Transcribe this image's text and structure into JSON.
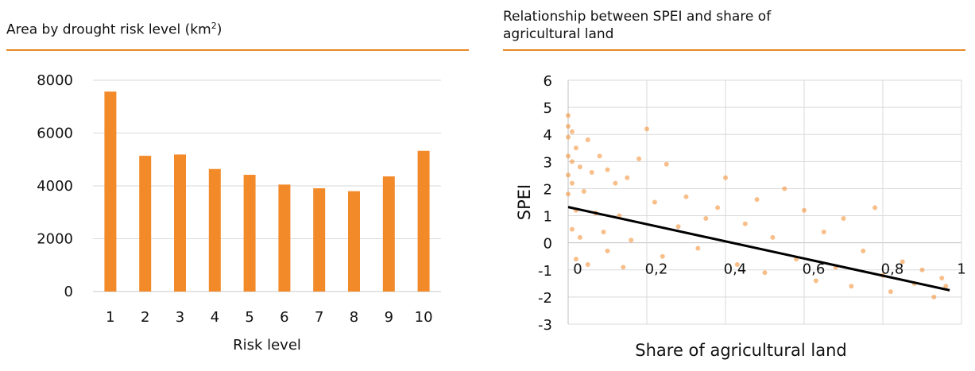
{
  "chart_data": [
    {
      "type": "bar",
      "title": "Area by drought risk level (km",
      "title_sup": "2",
      "title_end": ")",
      "xlabel": "Risk level",
      "ylabel": "",
      "categories": [
        "1",
        "2",
        "3",
        "4",
        "5",
        "6",
        "7",
        "8",
        "9",
        "10"
      ],
      "values": [
        7570,
        5140,
        5190,
        4640,
        4420,
        4050,
        3910,
        3800,
        4360,
        5330
      ],
      "ylim": [
        0,
        8000
      ],
      "yticks": [
        "0",
        "2000",
        "4000",
        "6000",
        "8000"
      ],
      "grid": true,
      "color": "#f28a2a"
    },
    {
      "type": "scatter",
      "title": "Relationship between SPEI and share of agricultural land",
      "title_lines": [
        "Relationship between SPEI and share of",
        "agricultural land"
      ],
      "xlabel": "Share of agricultural land",
      "ylabel": "SPEI",
      "xlim": [
        0,
        1
      ],
      "ylim": [
        -3,
        6
      ],
      "xticks": [
        "0",
        "0,2",
        "0,4",
        "0,6",
        "0,8",
        "1"
      ],
      "yticks": [
        "-3",
        "-2",
        "-1",
        "0",
        "1",
        "2",
        "3",
        "4",
        "5",
        "6"
      ],
      "grid": true,
      "color": "#f28a2a",
      "trendline": {
        "x": [
          0,
          0.97
        ],
        "y": [
          1.32,
          -1.75
        ],
        "color": "#000000"
      },
      "series": [
        {
          "x": [
            0.0,
            0.0,
            0.0,
            0.0,
            0.0,
            0.0,
            0.01,
            0.01,
            0.01,
            0.01,
            0.02,
            0.02,
            0.02,
            0.03,
            0.03,
            0.04,
            0.05,
            0.05,
            0.06,
            0.07,
            0.08,
            0.09,
            0.1,
            0.1,
            0.12,
            0.13,
            0.14,
            0.15,
            0.16,
            0.18,
            0.2,
            0.22,
            0.24,
            0.25,
            0.28,
            0.3,
            0.33,
            0.35,
            0.38,
            0.4,
            0.43,
            0.45,
            0.48,
            0.5,
            0.52,
            0.55,
            0.58,
            0.6,
            0.63,
            0.65,
            0.68,
            0.7,
            0.72,
            0.75,
            0.78,
            0.8,
            0.82,
            0.85,
            0.88,
            0.9,
            0.93,
            0.95,
            0.96
          ],
          "y": [
            4.7,
            4.3,
            3.9,
            3.2,
            2.5,
            1.8,
            4.1,
            3.0,
            2.2,
            0.5,
            3.5,
            1.2,
            -0.6,
            2.8,
            0.2,
            1.9,
            3.8,
            -0.8,
            2.6,
            1.1,
            3.2,
            0.4,
            2.7,
            -0.3,
            2.2,
            1.0,
            -0.9,
            2.4,
            0.1,
            3.1,
            4.2,
            1.5,
            -0.5,
            2.9,
            0.6,
            1.7,
            -0.2,
            0.9,
            1.3,
            2.4,
            -0.8,
            0.7,
            1.6,
            -1.1,
            0.2,
            2.0,
            -0.6,
            1.2,
            -1.4,
            0.4,
            -0.9,
            0.9,
            -1.6,
            -0.3,
            1.3,
            -1.2,
            -1.8,
            -0.7,
            -1.5,
            -1.0,
            -2.0,
            -1.3,
            -1.6
          ]
        }
      ]
    }
  ]
}
